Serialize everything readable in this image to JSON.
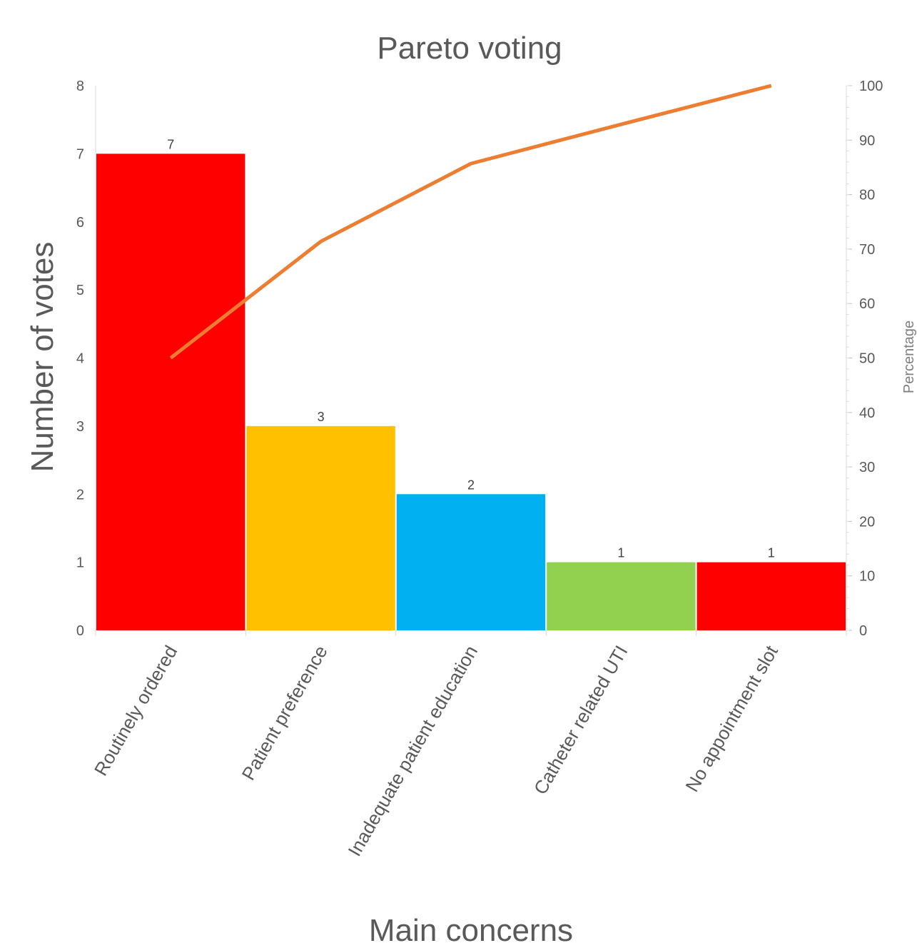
{
  "chart_data": {
    "type": "bar",
    "title": "Pareto voting",
    "xlabel": "Main concerns",
    "ylabel": "Number of votes",
    "y2label": "Percentage",
    "categories": [
      "Routinely ordered",
      "Patient preference",
      "Inadequate patient education",
      "Catheter related UTI",
      "No appointment slot"
    ],
    "values": [
      7,
      3,
      2,
      1,
      1
    ],
    "bar_colors": [
      "#ff0000",
      "#ffc000",
      "#00b0f0",
      "#92d050",
      "#ff0000"
    ],
    "cumulative_percent": [
      50,
      71.4,
      85.7,
      92.9,
      100
    ],
    "line_color": "#ed7d31",
    "ylim": [
      0,
      8
    ],
    "y_ticks": [
      "0",
      "1",
      "2",
      "3",
      "4",
      "5",
      "6",
      "7",
      "8"
    ],
    "y2lim": [
      0,
      100
    ],
    "y2_ticks": [
      "0",
      "10",
      "20",
      "30",
      "40",
      "50",
      "60",
      "70",
      "80",
      "90",
      "100"
    ],
    "grid": false,
    "legend": "none"
  }
}
